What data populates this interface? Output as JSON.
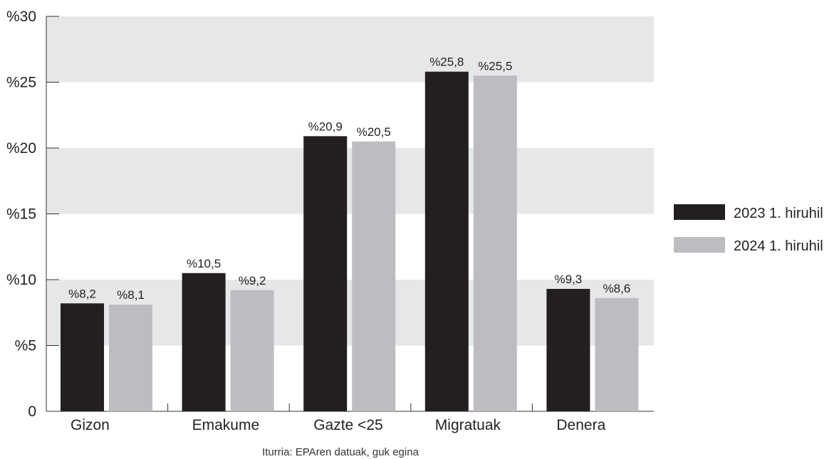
{
  "chart_data": {
    "type": "bar",
    "categories": [
      "Gizon",
      "Emakume",
      "Gazte <25",
      "Migratuak",
      "Denera"
    ],
    "series": [
      {
        "name": "2023 1. hiruhil",
        "color": "#231f20",
        "values": [
          8.2,
          10.5,
          20.9,
          25.8,
          9.3
        ],
        "labels": [
          "%8,2",
          "%10,5",
          "%20,9",
          "%25,8",
          "%9,3"
        ]
      },
      {
        "name": "2024 1. hiruhil",
        "color": "#bcbdc0",
        "values": [
          8.1,
          9.2,
          20.5,
          25.5,
          8.6
        ],
        "labels": [
          "%8,1",
          "%9,2",
          "%20,5",
          "%25,5",
          "%8,6"
        ]
      }
    ],
    "ylim": [
      0,
      30
    ],
    "yticks": [
      0,
      5,
      10,
      15,
      20,
      25,
      30
    ],
    "ytick_labels": [
      "0",
      "%5",
      "%10",
      "%15",
      "%20",
      "%25",
      "%30"
    ],
    "band_color": "#e6e7e8",
    "legend_position": "right",
    "source": "Iturria: EPAren datuak, guk egina"
  }
}
